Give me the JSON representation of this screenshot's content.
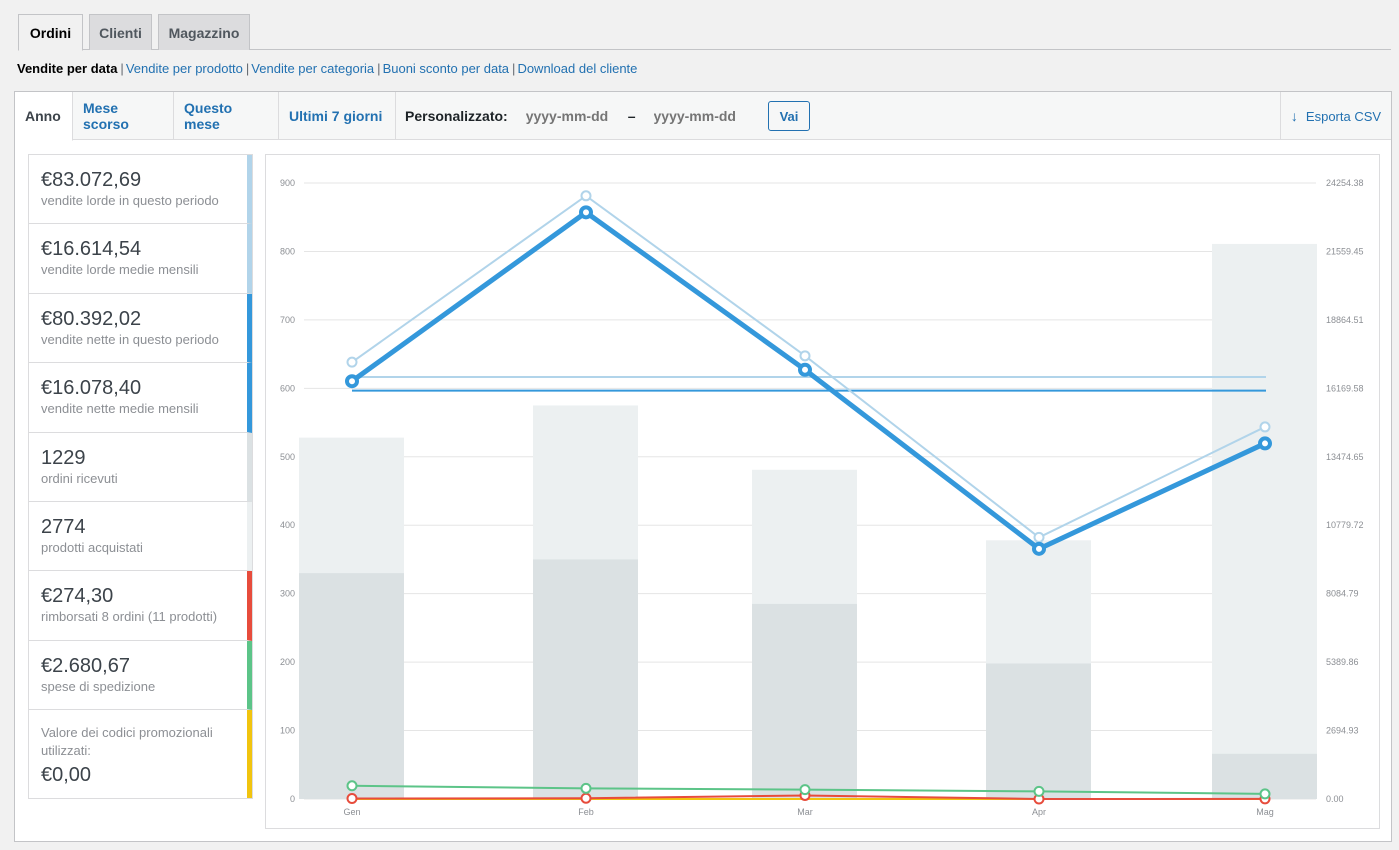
{
  "nav_tabs": [
    "Ordini",
    "Clienti",
    "Magazzino"
  ],
  "sub_links": {
    "current": "Vendite per data",
    "others": [
      "Vendite per prodotto",
      "Vendite per categoria",
      "Buoni sconto per data",
      "Download del cliente"
    ]
  },
  "range": {
    "tabs": [
      "Anno",
      "Mese scorso",
      "Questo mese",
      "Ultimi 7 giorni"
    ],
    "custom_label": "Personalizzato:",
    "start_placeholder": "yyyy-mm-dd",
    "end_placeholder": "yyyy-mm-dd",
    "dash": "–",
    "go_label": "Vai",
    "export_label": "Esporta CSV"
  },
  "legend": [
    {
      "value": "€83.072,69",
      "label": "vendite lorde in questo periodo",
      "color": "#b1d4ea"
    },
    {
      "value": "€16.614,54",
      "label": "vendite lorde medie mensili",
      "color": "#b1d4ea"
    },
    {
      "value": "€80.392,02",
      "label": "vendite nette in questo periodo",
      "color": "#3498db"
    },
    {
      "value": "€16.078,40",
      "label": "vendite nette medie mensili",
      "color": "#3498db"
    },
    {
      "value": "1229",
      "label": "ordini ricevuti",
      "color": "#dbe1e3"
    },
    {
      "value": "2774",
      "label": "prodotti acquistati",
      "color": "#ecf0f1"
    },
    {
      "value": "€274,30",
      "label": "rimborsati 8 ordini (11 prodotti)",
      "color": "#e74c3c"
    },
    {
      "value": "€2.680,67",
      "label": "spese di spedizione",
      "color": "#5cc488"
    },
    {
      "value": "€0,00",
      "label": "Valore dei codici promozionali utilizzati:",
      "color": "#f1c40f"
    }
  ],
  "chart_data": {
    "type": "bar+line",
    "categories": [
      "Gen",
      "Feb",
      "Mar",
      "Apr",
      "Mag"
    ],
    "y_left_ticks": [
      "0",
      "100",
      "200",
      "300",
      "400",
      "500",
      "600",
      "700",
      "800",
      "900"
    ],
    "y_right_ticks": [
      "0.00",
      "2694.93",
      "5389.86",
      "8084.79",
      "10779.72",
      "13474.65",
      "16169.58",
      "18864.51",
      "21559.45",
      "24254.38"
    ],
    "ylim_left": [
      0,
      900
    ],
    "ylim_right": [
      0,
      24254.38
    ],
    "bars": [
      {
        "name": "prodotti acquistati",
        "color": "#ecf0f1",
        "values": [
          528,
          575,
          481,
          378,
          811
        ]
      },
      {
        "name": "ordini ricevuti",
        "color": "#dbe1e3",
        "values": [
          330,
          350,
          285,
          198,
          66
        ]
      }
    ],
    "lines": [
      {
        "name": "vendite lorde",
        "color": "#b1d4ea",
        "width": 2,
        "values": [
          17200,
          23750,
          17450,
          10300,
          14650
        ]
      },
      {
        "name": "vendite nette",
        "color": "#3498db",
        "width": 5,
        "values": [
          16450,
          23100,
          16900,
          9850,
          14000
        ]
      },
      {
        "name": "spese di spedizione",
        "color": "#5cc488",
        "width": 2,
        "values": [
          520,
          420,
          370,
          300,
          200
        ]
      },
      {
        "name": "rimborsati",
        "color": "#e74c3c",
        "width": 2,
        "values": [
          20,
          30,
          140,
          0,
          5
        ]
      },
      {
        "name": "codici promozionali",
        "color": "#f1c40f",
        "width": 2,
        "values": [
          0,
          0,
          0,
          0,
          0
        ]
      }
    ],
    "average_lines": [
      {
        "name": "vendite lorde medie mensili",
        "color": "#b1d4ea",
        "value": 16614.54
      },
      {
        "name": "vendite nette medie mensili",
        "color": "#3498db",
        "value": 16078.4
      }
    ],
    "grid": true
  }
}
